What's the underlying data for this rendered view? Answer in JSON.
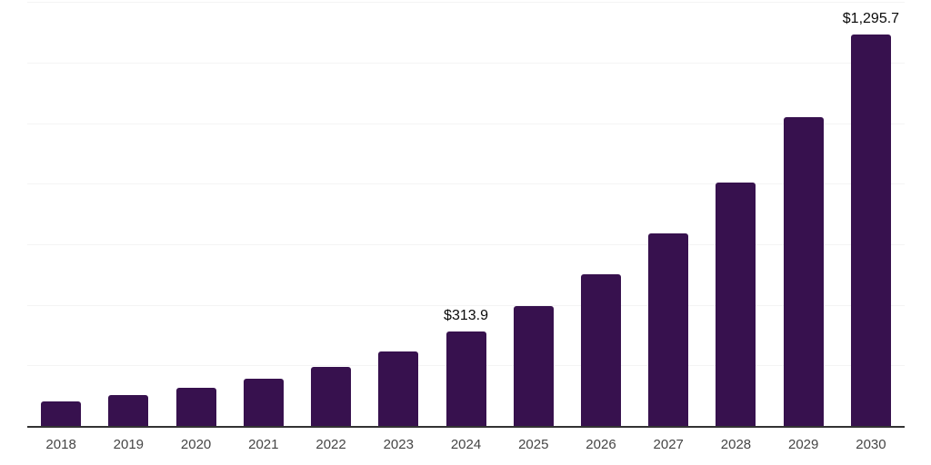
{
  "chart_data": {
    "type": "bar",
    "title": "",
    "xlabel": "",
    "ylabel": "",
    "categories": [
      "2018",
      "2019",
      "2020",
      "2021",
      "2022",
      "2023",
      "2024",
      "2025",
      "2026",
      "2027",
      "2028",
      "2029",
      "2030"
    ],
    "values": [
      83,
      104,
      128,
      159,
      197,
      248,
      313.9,
      398,
      504,
      638,
      808,
      1023,
      1295.7
    ],
    "value_labels": [
      "",
      "",
      "",
      "",
      "",
      "",
      "$313.9",
      "",
      "",
      "",
      "",
      "",
      "$1,295.7"
    ],
    "labeled_values_visible": [
      "$313.9",
      "$1,295.7"
    ],
    "ylim": [
      0,
      1410
    ],
    "gridline_values": [
      200,
      400,
      600,
      800,
      1000,
      1200,
      1400
    ],
    "grid": "horizontal",
    "y_tick_labels_shown": false,
    "legend_position": "none"
  },
  "colors": {
    "bar": "#37114E",
    "axis_line": "#333333",
    "gridline": "#f4f4f4",
    "tick_label": "#454545",
    "value_label": "#0a0a0a",
    "background": "#ffffff"
  }
}
